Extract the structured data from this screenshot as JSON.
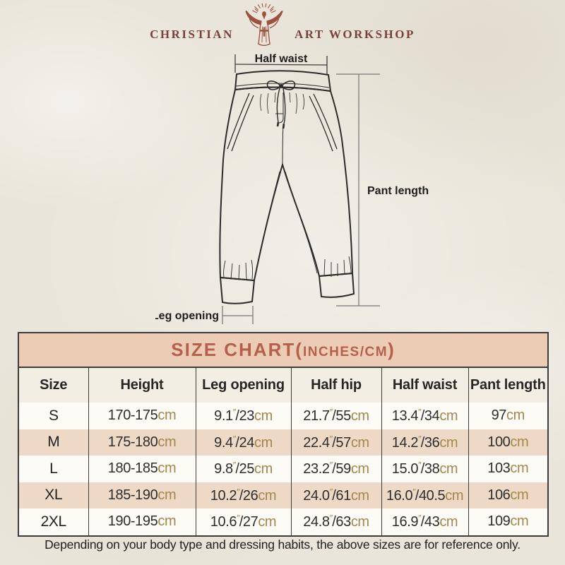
{
  "brand": {
    "left": "CHRISTIAN",
    "right": "ART WORKSHOP"
  },
  "diagram": {
    "labels": {
      "half_waist": "Half waist",
      "pant_length": "Pant length",
      "leg_opening": "Leg opening"
    }
  },
  "table": {
    "title_main": "SIZE CHART(",
    "title_sub": "INCHES/CM",
    "title_close": ")",
    "columns": [
      "Size",
      "Height",
      "Leg opening",
      "Half hip",
      "Half waist",
      "Pant length"
    ],
    "inch_mark": "″",
    "slash": "/",
    "unit_cm": "cm",
    "rows": [
      {
        "size": "S",
        "height": "170-175",
        "leg_opening_in": "9.1",
        "leg_opening_cm": "23",
        "half_hip_in": "21.7",
        "half_hip_cm": "55",
        "half_waist_in": "13.4",
        "half_waist_cm": "34",
        "pant_length": "97"
      },
      {
        "size": "M",
        "height": "175-180",
        "leg_opening_in": "9.4",
        "leg_opening_cm": "24",
        "half_hip_in": "22.4",
        "half_hip_cm": "57",
        "half_waist_in": "14.2",
        "half_waist_cm": "36",
        "pant_length": "100"
      },
      {
        "size": "L",
        "height": "180-185",
        "leg_opening_in": "9.8",
        "leg_opening_cm": "25",
        "half_hip_in": "23.2",
        "half_hip_cm": "59",
        "half_waist_in": "15.0",
        "half_waist_cm": "38",
        "pant_length": "103"
      },
      {
        "size": "XL",
        "height": "185-190",
        "leg_opening_in": "10.2",
        "leg_opening_cm": "26",
        "half_hip_in": "24.0",
        "half_hip_cm": "61",
        "half_waist_in": "16.0",
        "half_waist_cm": "40.5",
        "pant_length": "106"
      },
      {
        "size": "2XL",
        "height": "190-195",
        "leg_opening_in": "10.6",
        "leg_opening_cm": "27",
        "half_hip_in": "24.8",
        "half_hip_cm": "63",
        "half_waist_in": "16.9",
        "half_waist_cm": "43",
        "pant_length": "109"
      }
    ]
  },
  "footer": {
    "note": "Depending on your body type and dressing habits, the above sizes are for reference only."
  },
  "colors": {
    "page_bg": "#e9e5da",
    "brand_text": "#77433a",
    "logo": "#9d5240",
    "title_bg": "#edccb6",
    "title_text": "#b4614c",
    "header_row_bg": "#f3eee3",
    "row_even_bg": "#eed9c6",
    "row_odd_bg": "#fcfbf6",
    "unit_text": "#a3874f",
    "table_border": "#3b3b3b"
  }
}
